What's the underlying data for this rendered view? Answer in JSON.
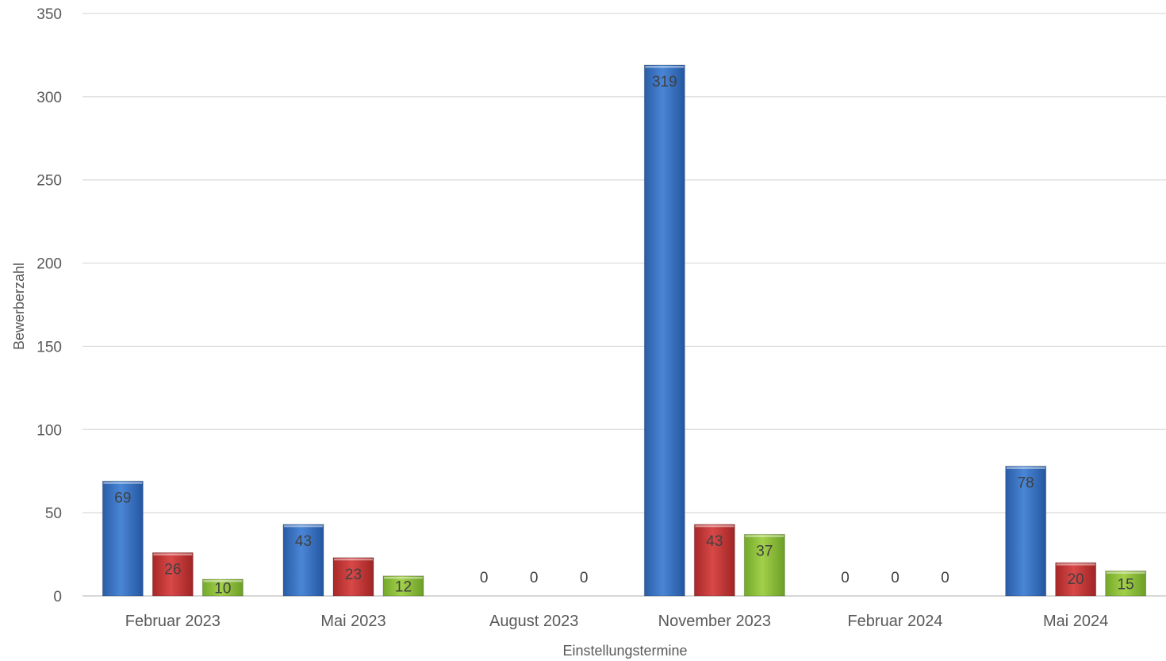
{
  "chart_data": {
    "type": "bar",
    "title": "",
    "xlabel": "Einstellungstermine",
    "ylabel": "Bewerberzahl",
    "ylim": [
      0,
      350
    ],
    "yticks": [
      0,
      50,
      100,
      150,
      200,
      250,
      300,
      350
    ],
    "grid": true,
    "legend": "none",
    "categories": [
      "Februar 2023",
      "Mai 2023",
      "August 2023",
      "November 2023",
      "Februar 2024",
      "Mai 2024"
    ],
    "series": [
      {
        "color": "#3a74c6",
        "values": [
          69,
          43,
          0,
          319,
          0,
          78
        ]
      },
      {
        "color": "#c83a3a",
        "values": [
          26,
          23,
          0,
          43,
          0,
          20
        ]
      },
      {
        "color": "#8bbf3a",
        "values": [
          10,
          12,
          0,
          37,
          0,
          15
        ]
      }
    ]
  }
}
